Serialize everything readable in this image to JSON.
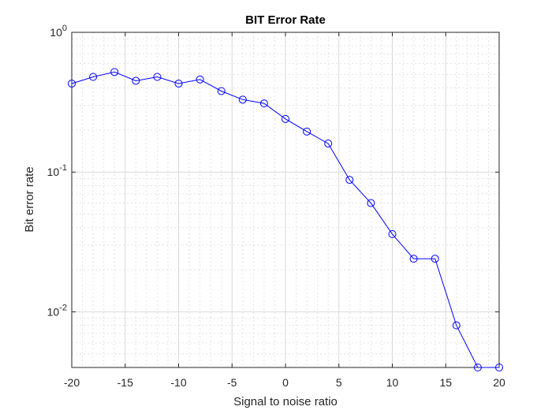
{
  "chart_data": {
    "type": "line",
    "title": "BIT Error Rate",
    "xlabel": "Signal to noise ratio",
    "ylabel": "Bit error rate",
    "xscale": "linear",
    "yscale": "log",
    "xlim": [
      -20,
      20
    ],
    "ylim": [
      0.004,
      1
    ],
    "grid": true,
    "minor_grid": true,
    "x_ticks": [
      -20,
      -15,
      -10,
      -5,
      0,
      5,
      10,
      15,
      20
    ],
    "x_tick_labels": [
      "-20",
      "-15",
      "-10",
      "-5",
      "0",
      "5",
      "10",
      "15",
      "20"
    ],
    "y_ticks": [
      {
        "value": 1,
        "base": "10",
        "exponent": "0"
      },
      {
        "value": 0.1,
        "base": "10",
        "exponent": "-1"
      },
      {
        "value": 0.01,
        "base": "10",
        "exponent": "-2"
      }
    ],
    "series": [
      {
        "color": "#0000ff",
        "marker": "circle",
        "x": [
          -20,
          -18,
          -16,
          -14,
          -12,
          -10,
          -8,
          -6,
          -4,
          -2,
          0,
          2,
          4,
          6,
          8,
          10,
          12,
          14,
          16,
          18,
          20
        ],
        "y": [
          0.43,
          0.48,
          0.52,
          0.45,
          0.48,
          0.43,
          0.46,
          0.38,
          0.33,
          0.31,
          0.24,
          0.195,
          0.16,
          0.088,
          0.06,
          0.036,
          0.024,
          0.024,
          0.008,
          0.004,
          0.004
        ]
      }
    ]
  }
}
